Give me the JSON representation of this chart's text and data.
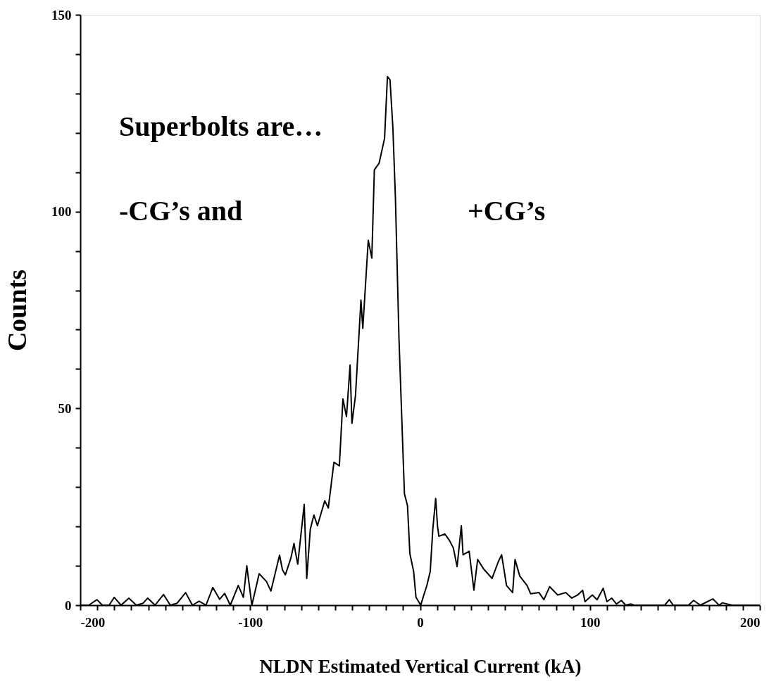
{
  "chart_data": {
    "type": "line",
    "xlabel": "NLDN Estimated Vertical Current (kA)",
    "ylabel": "Counts",
    "annotations": [
      "Superbolts are…",
      "-CG’s and",
      "+CG’s"
    ],
    "x": [
      -200,
      -195,
      -190.2,
      -187,
      -183,
      -180,
      -176,
      -171.4,
      -167,
      -163,
      -160.3,
      -156,
      -151,
      -147,
      -143,
      -138,
      -134,
      -130,
      -126,
      -122,
      -118,
      -115,
      -111.7,
      -107,
      -104,
      -102,
      -99,
      -94.7,
      -90.4,
      -87.8,
      -82.7,
      -81,
      -79.3,
      -76,
      -74.2,
      -73.4,
      -72,
      -68.2,
      -66.7,
      -64.6,
      -62.5,
      -60.4,
      -56.1,
      -54,
      -50.7,
      -47.5,
      -45.4,
      -43.3,
      -41.2,
      -40.1,
      -38,
      -34.8,
      -33.7,
      -30.5,
      -28.4,
      -26.9,
      -24.1,
      -20.9,
      -19.2,
      -17.7,
      -16,
      -14.5,
      -12.4,
      -9.2,
      -7.4,
      -6,
      -3.8,
      -2.4,
      0.4,
      1.8,
      4,
      6,
      7.5,
      9.2,
      10.3,
      11.1,
      14.6,
      17.5,
      19.6,
      21.8,
      24.3,
      25.3,
      28.9,
      31.7,
      33.9,
      37.4,
      42.4,
      46,
      48,
      50.9,
      54.5,
      55.9,
      58.7,
      63,
      65.1,
      70,
      72.9,
      76.3,
      81,
      85.7,
      89.3,
      92.8,
      95.7,
      97.1,
      101.4,
      104.2,
      107.8,
      110,
      112.8,
      115.6,
      118.5,
      121,
      124.2,
      126,
      144,
      146.7,
      149,
      158,
      161,
      165,
      172.3,
      176,
      178,
      183.6,
      200
    ],
    "values": [
      0,
      0,
      1.4,
      0,
      0,
      2,
      0,
      1.8,
      0,
      0.5,
      1.8,
      0,
      2.7,
      0,
      0.5,
      3.2,
      0,
      1,
      0,
      4.5,
      1.5,
      3,
      0,
      5,
      2,
      10,
      0,
      8,
      6,
      3.6,
      12.7,
      9,
      7.7,
      12,
      15.7,
      13.6,
      10.4,
      25.6,
      6.8,
      19.3,
      22.9,
      20.2,
      26.5,
      24.7,
      36.3,
      35.4,
      52.4,
      47.9,
      61,
      46.2,
      53.3,
      77.5,
      70.3,
      92.7,
      88.2,
      110.6,
      112.3,
      118.6,
      134.3,
      133.5,
      121.3,
      103.4,
      67.6,
      28.3,
      25.3,
      13.1,
      8.6,
      2,
      0,
      2,
      5,
      8.6,
      19.3,
      27.1,
      19.9,
      17.5,
      18.1,
      16.3,
      14.5,
      9.8,
      20.2,
      12.8,
      13.7,
      3.8,
      11.6,
      9.2,
      6.8,
      11,
      12.8,
      5,
      3.2,
      11.6,
      7.4,
      5,
      2.9,
      3.2,
      1.4,
      4.7,
      2.6,
      3.2,
      1.8,
      2.6,
      3.8,
      0.9,
      2.6,
      1.4,
      4.3,
      0.9,
      1.8,
      0.3,
      1.2,
      0,
      0.3,
      0,
      0,
      1.4,
      0,
      0,
      1.2,
      0,
      1.6,
      0,
      0.6,
      0,
      0
    ],
    "color": "#000000",
    "xlim": [
      -200,
      200
    ],
    "ylim": [
      0,
      150
    ],
    "xticks": [
      -200,
      {
        "value": -190,
        "label": null
      },
      {
        "value": -180,
        "label": null
      },
      {
        "value": -170,
        "label": null
      },
      {
        "value": -160,
        "label": null
      },
      {
        "value": -150,
        "label": null
      },
      {
        "value": -140,
        "label": null
      },
      {
        "value": -130,
        "label": null
      },
      {
        "value": -120,
        "label": null
      },
      {
        "value": -110,
        "label": null
      },
      -100,
      {
        "value": -90,
        "label": null
      },
      {
        "value": -80,
        "label": null
      },
      {
        "value": -70,
        "label": null
      },
      {
        "value": -60,
        "label": null
      },
      {
        "value": -50,
        "label": null
      },
      {
        "value": -40,
        "label": null
      },
      {
        "value": -30,
        "label": null
      },
      {
        "value": -20,
        "label": null
      },
      {
        "value": -10,
        "label": null
      },
      0,
      {
        "value": 10,
        "label": null
      },
      {
        "value": 20,
        "label": null
      },
      {
        "value": 30,
        "label": null
      },
      {
        "value": 40,
        "label": null
      },
      {
        "value": 50,
        "label": null
      },
      {
        "value": 60,
        "label": null
      },
      {
        "value": 70,
        "label": null
      },
      {
        "value": 80,
        "label": null
      },
      {
        "value": 90,
        "label": null
      },
      100,
      {
        "value": 110,
        "label": null
      },
      {
        "value": 120,
        "label": null
      },
      {
        "value": 130,
        "label": null
      },
      {
        "value": 140,
        "label": null
      },
      {
        "value": 150,
        "label": null
      },
      {
        "value": 160,
        "label": null
      },
      {
        "value": 170,
        "label": null
      },
      {
        "value": 180,
        "label": null
      },
      {
        "value": 190,
        "label": null
      },
      200
    ],
    "yticks": [
      0,
      {
        "value": 10,
        "label": null
      },
      {
        "value": 20,
        "label": null
      },
      {
        "value": 30,
        "label": null
      },
      {
        "value": 40,
        "label": null
      },
      50,
      {
        "value": 60,
        "label": null
      },
      {
        "value": 70,
        "label": null
      },
      {
        "value": 80,
        "label": null
      },
      {
        "value": 90,
        "label": null
      },
      100,
      {
        "value": 110,
        "label": null
      },
      {
        "value": 120,
        "label": null
      },
      {
        "value": 130,
        "label": null
      },
      {
        "value": 140,
        "label": null
      },
      150
    ],
    "grid": false,
    "marker": "none",
    "line_style": "solid"
  }
}
